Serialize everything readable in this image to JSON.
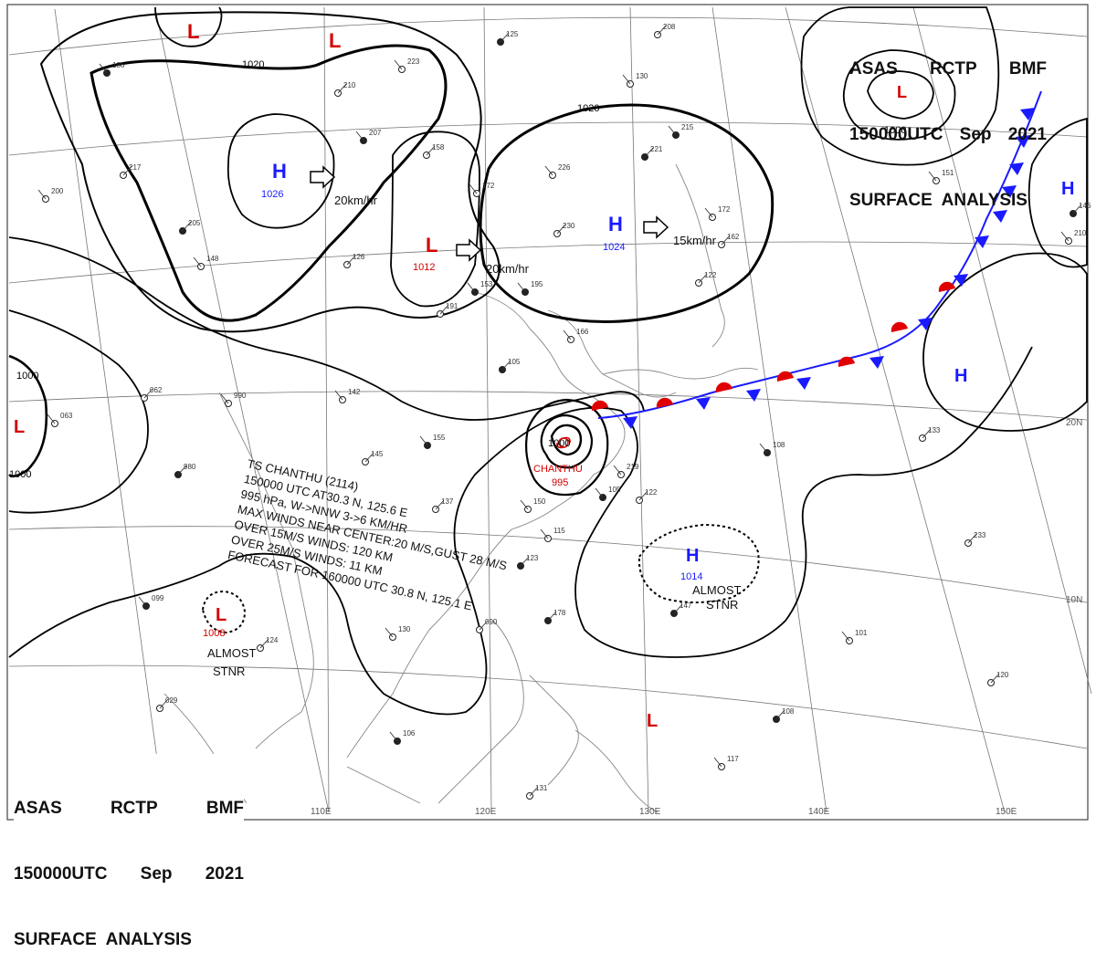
{
  "header_top": {
    "agency": "ASAS",
    "station": "RCTP",
    "office": "BMF",
    "time": "150000UTC",
    "month": "Sep",
    "year": "2021",
    "title": "SURFACE  ANALYSIS"
  },
  "header_bottom": {
    "agency": "ASAS",
    "station": "RCTP",
    "office": "BMF",
    "time": "150000UTC",
    "month": "Sep",
    "year": "2021",
    "title": "SURFACE  ANALYSIS"
  },
  "longitude_labels": [
    "110E",
    "120E",
    "130E",
    "140E",
    "150E"
  ],
  "latitude_labels": [
    "20N",
    "10N"
  ],
  "pressure_systems": [
    {
      "type": "L",
      "pressure": "",
      "color": "#d40000"
    },
    {
      "type": "L",
      "pressure": "",
      "color": "#d40000"
    },
    {
      "type": "H",
      "pressure": "1026",
      "color": "#1a1aff"
    },
    {
      "type": "L",
      "pressure": "1012",
      "color": "#d40000"
    },
    {
      "type": "H",
      "pressure": "1024",
      "color": "#1a1aff"
    },
    {
      "type": "L",
      "pressure": "",
      "color": "#d40000"
    },
    {
      "type": "H",
      "pressure": "",
      "color": "#1a1aff"
    },
    {
      "type": "H",
      "pressure": "",
      "color": "#1a1aff"
    },
    {
      "type": "L",
      "pressure": "",
      "color": "#d40000"
    },
    {
      "type": "H",
      "pressure": "1014",
      "color": "#1a1aff"
    },
    {
      "type": "L",
      "pressure": "1008",
      "color": "#d40000"
    },
    {
      "type": "L",
      "pressure": "",
      "color": "#d40000"
    }
  ],
  "isobar_labels": [
    "1020",
    "1020",
    "1000",
    "1000",
    "1000",
    "1000"
  ],
  "motion_labels": [
    "20km/hr",
    "20km/hr",
    "15km/hr"
  ],
  "stationary_labels": [
    {
      "line1": "ALMOST",
      "line2": "STNR"
    },
    {
      "line1": "ALMOST",
      "line2": "STNR"
    }
  ],
  "typhoon": {
    "name": "CHANTHU",
    "pressure": "995",
    "bulletin": [
      "TS  CHANTHU  (2114)",
      "150000 UTC  AT30.3 N, 125.6 E",
      "995 hPa, W->NNW  3->6 KM/HR",
      "MAX WINDS NEAR CENTER:20 M/S,GUST 28 M/S",
      "OVER 15M/S WINDS: 120 KM",
      "OVER 25M/S WINDS: 11 KM",
      "FORECAST FOR 160000 UTC 30.8 N, 125.1 E"
    ]
  },
  "station_numbers": [
    "125",
    "223",
    "210",
    "207",
    "158",
    "226",
    "221",
    "172",
    "230",
    "195",
    "191",
    "166",
    "105",
    "142",
    "145",
    "155",
    "137",
    "150",
    "123",
    "115",
    "124",
    "099",
    "062",
    "990",
    "980",
    "063",
    "029",
    "106",
    "131",
    "117",
    "108",
    "101",
    "120",
    "108",
    "133",
    "151",
    "146",
    "210",
    "162",
    "215",
    "208",
    "130",
    "147",
    "172",
    "122",
    "186",
    "217",
    "200",
    "205",
    "148",
    "126",
    "153",
    "233",
    "219",
    "178",
    "130",
    "090",
    "105",
    "122"
  ],
  "colors": {
    "cold_front": "#1a1aff",
    "warm_front": "#e00000",
    "low": "#d40000",
    "high": "#1a1aff"
  }
}
